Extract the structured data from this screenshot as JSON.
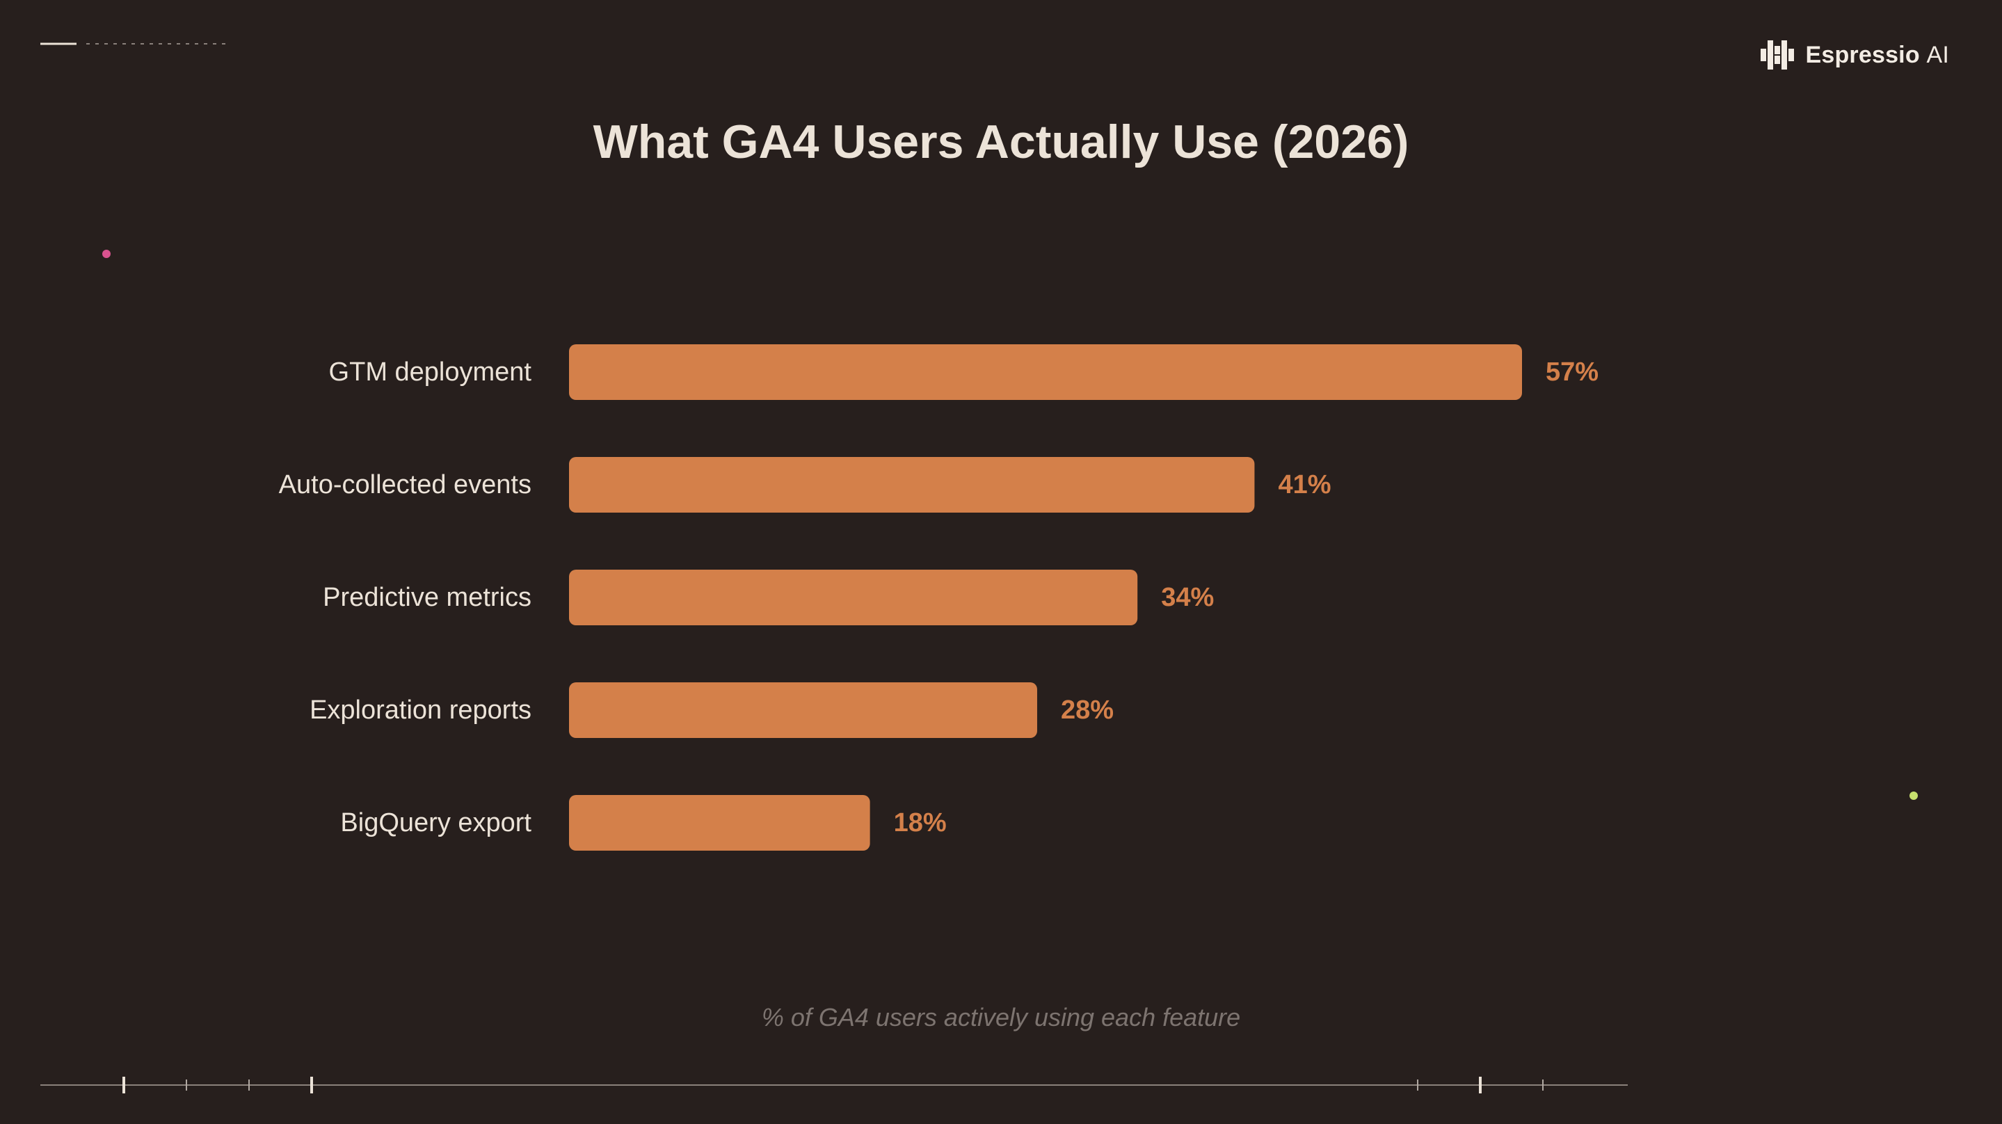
{
  "brand": {
    "name": "Espressio",
    "suffix": "AI",
    "logo_icon": "espressio-logo-icon"
  },
  "caption": "% of GA4 users actively using each feature",
  "colors": {
    "background": "#271f1d",
    "bar": "#d4804a",
    "value_label": "#d4804a",
    "text": "#ece3d8",
    "caption": "#7d7470",
    "accent_pink": "#d9538f",
    "accent_lime": "#c8e06e"
  },
  "chart_data": {
    "type": "bar",
    "orientation": "horizontal",
    "title": "What GA4 Users Actually Use (2026)",
    "categories": [
      "GTM deployment",
      "Auto-collected events",
      "Predictive metrics",
      "Exploration reports",
      "BigQuery export"
    ],
    "values": [
      57,
      41,
      34,
      28,
      18
    ],
    "value_labels": [
      "57%",
      "41%",
      "34%",
      "28%",
      "18%"
    ],
    "unit": "%",
    "xlim": [
      0,
      57
    ],
    "grid": false,
    "legend": "none"
  }
}
